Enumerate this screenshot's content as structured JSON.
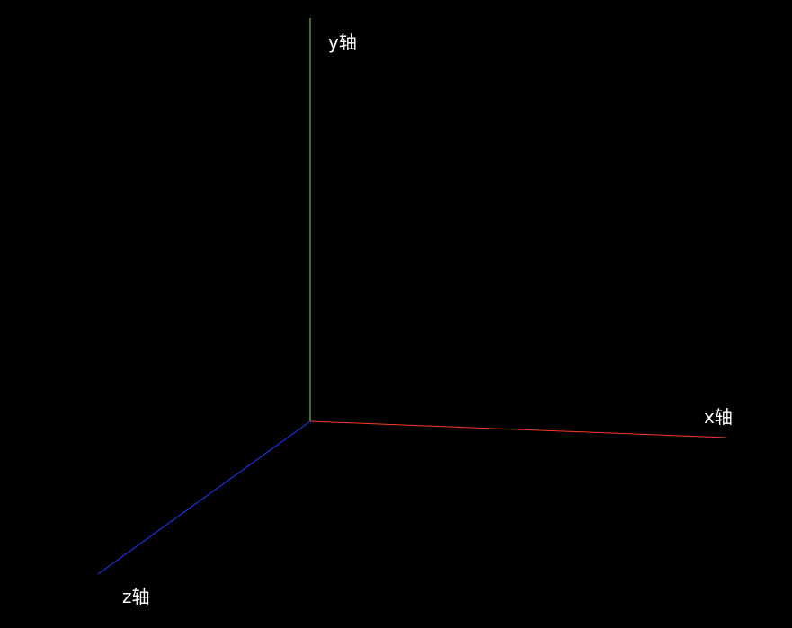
{
  "scene": {
    "background_color": "#000000",
    "axes": {
      "x": {
        "label": "x轴",
        "color": "#ff3b1f"
      },
      "y": {
        "label": "y轴",
        "color": "#7ee05a"
      },
      "z": {
        "label": "z轴",
        "color": "#1f3bff"
      }
    }
  }
}
